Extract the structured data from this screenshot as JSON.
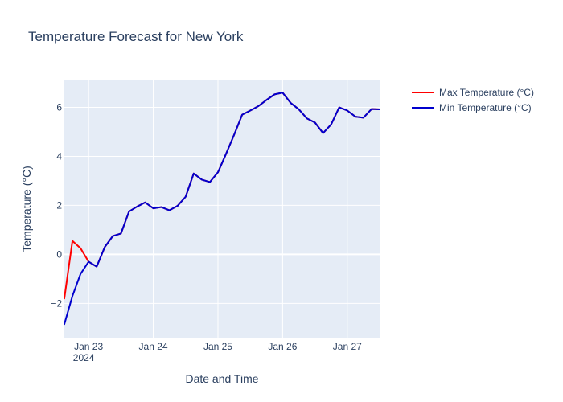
{
  "chart_data": {
    "type": "line",
    "title": "Temperature Forecast for New York",
    "xlabel": "Date and Time",
    "ylabel": "Temperature (°C)",
    "x_type": "date",
    "xlim": [
      "2024-01-22 15:00",
      "2024-01-27 12:00"
    ],
    "ylim": [
      -3.4,
      7.1
    ],
    "x_ticks": [
      {
        "value": "2024-01-23 00:00",
        "label": "Jan 23",
        "sublabel": "2024"
      },
      {
        "value": "2024-01-24 00:00",
        "label": "Jan 24",
        "sublabel": ""
      },
      {
        "value": "2024-01-25 00:00",
        "label": "Jan 25",
        "sublabel": ""
      },
      {
        "value": "2024-01-26 00:00",
        "label": "Jan 26",
        "sublabel": ""
      },
      {
        "value": "2024-01-27 00:00",
        "label": "Jan 27",
        "sublabel": ""
      }
    ],
    "y_ticks": [
      -2,
      0,
      2,
      4,
      6
    ],
    "y_tick_labels": [
      "−2",
      "0",
      "2",
      "4",
      "6"
    ],
    "grid": true,
    "legend_position": "top-right, outside plot",
    "colors": {
      "background": "#e5ecf6",
      "grid": "#ffffff",
      "text": "#2a3f5f"
    },
    "series": [
      {
        "name": "Max Temperature (°C)",
        "color": "#ff0000",
        "points": [
          [
            "2024-01-22 15:00",
            -1.8
          ],
          [
            "2024-01-22 18:00",
            0.55
          ],
          [
            "2024-01-22 21:00",
            0.25
          ],
          [
            "2024-01-23 00:00",
            -0.3
          ],
          [
            "2024-01-23 03:00",
            -0.5
          ],
          [
            "2024-01-23 06:00",
            0.3
          ],
          [
            "2024-01-23 09:00",
            0.75
          ],
          [
            "2024-01-23 12:00",
            0.85
          ],
          [
            "2024-01-23 15:00",
            1.75
          ],
          [
            "2024-01-23 18:00",
            1.95
          ],
          [
            "2024-01-23 21:00",
            2.12
          ],
          [
            "2024-01-24 00:00",
            1.88
          ],
          [
            "2024-01-24 03:00",
            1.93
          ],
          [
            "2024-01-24 06:00",
            1.8
          ],
          [
            "2024-01-24 09:00",
            1.98
          ],
          [
            "2024-01-24 12:00",
            2.35
          ],
          [
            "2024-01-24 15:00",
            3.3
          ],
          [
            "2024-01-24 18:00",
            3.05
          ],
          [
            "2024-01-24 21:00",
            2.95
          ],
          [
            "2024-01-25 00:00",
            3.35
          ],
          [
            "2024-01-25 03:00",
            4.1
          ],
          [
            "2024-01-25 06:00",
            4.88
          ],
          [
            "2024-01-25 09:00",
            5.7
          ],
          [
            "2024-01-25 12:00",
            5.87
          ],
          [
            "2024-01-25 15:00",
            6.05
          ],
          [
            "2024-01-25 18:00",
            6.3
          ],
          [
            "2024-01-25 21:00",
            6.53
          ],
          [
            "2024-01-26 00:00",
            6.6
          ],
          [
            "2024-01-26 03:00",
            6.18
          ],
          [
            "2024-01-26 06:00",
            5.92
          ],
          [
            "2024-01-26 09:00",
            5.55
          ],
          [
            "2024-01-26 12:00",
            5.38
          ],
          [
            "2024-01-26 15:00",
            4.95
          ],
          [
            "2024-01-26 18:00",
            5.3
          ],
          [
            "2024-01-26 21:00",
            6.0
          ],
          [
            "2024-01-27 00:00",
            5.87
          ],
          [
            "2024-01-27 03:00",
            5.62
          ],
          [
            "2024-01-27 06:00",
            5.58
          ],
          [
            "2024-01-27 09:00",
            5.93
          ],
          [
            "2024-01-27 12:00",
            5.92
          ]
        ]
      },
      {
        "name": "Min Temperature (°C)",
        "color": "#0000cd",
        "points": [
          [
            "2024-01-22 15:00",
            -2.85
          ],
          [
            "2024-01-22 18:00",
            -1.7
          ],
          [
            "2024-01-22 21:00",
            -0.8
          ],
          [
            "2024-01-23 00:00",
            -0.3
          ],
          [
            "2024-01-23 03:00",
            -0.5
          ],
          [
            "2024-01-23 06:00",
            0.3
          ],
          [
            "2024-01-23 09:00",
            0.75
          ],
          [
            "2024-01-23 12:00",
            0.85
          ],
          [
            "2024-01-23 15:00",
            1.75
          ],
          [
            "2024-01-23 18:00",
            1.95
          ],
          [
            "2024-01-23 21:00",
            2.12
          ],
          [
            "2024-01-24 00:00",
            1.88
          ],
          [
            "2024-01-24 03:00",
            1.93
          ],
          [
            "2024-01-24 06:00",
            1.8
          ],
          [
            "2024-01-24 09:00",
            1.98
          ],
          [
            "2024-01-24 12:00",
            2.35
          ],
          [
            "2024-01-24 15:00",
            3.3
          ],
          [
            "2024-01-24 18:00",
            3.05
          ],
          [
            "2024-01-24 21:00",
            2.95
          ],
          [
            "2024-01-25 00:00",
            3.35
          ],
          [
            "2024-01-25 03:00",
            4.1
          ],
          [
            "2024-01-25 06:00",
            4.88
          ],
          [
            "2024-01-25 09:00",
            5.7
          ],
          [
            "2024-01-25 12:00",
            5.87
          ],
          [
            "2024-01-25 15:00",
            6.05
          ],
          [
            "2024-01-25 18:00",
            6.3
          ],
          [
            "2024-01-25 21:00",
            6.53
          ],
          [
            "2024-01-26 00:00",
            6.6
          ],
          [
            "2024-01-26 03:00",
            6.18
          ],
          [
            "2024-01-26 06:00",
            5.92
          ],
          [
            "2024-01-26 09:00",
            5.55
          ],
          [
            "2024-01-26 12:00",
            5.38
          ],
          [
            "2024-01-26 15:00",
            4.95
          ],
          [
            "2024-01-26 18:00",
            5.3
          ],
          [
            "2024-01-26 21:00",
            6.0
          ],
          [
            "2024-01-27 00:00",
            5.87
          ],
          [
            "2024-01-27 03:00",
            5.62
          ],
          [
            "2024-01-27 06:00",
            5.58
          ],
          [
            "2024-01-27 09:00",
            5.93
          ],
          [
            "2024-01-27 12:00",
            5.92
          ]
        ]
      }
    ]
  }
}
